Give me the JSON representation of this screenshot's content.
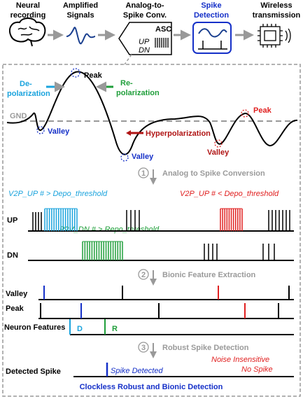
{
  "header": {
    "stages": [
      {
        "lines": [
          "Neural",
          "recording"
        ]
      },
      {
        "lines": [
          "Amplified",
          "Signals"
        ]
      },
      {
        "lines": [
          "Analog-to-",
          "Spike Conv."
        ],
        "box": "ASC",
        "up": "UP",
        "dn": "DN"
      },
      {
        "lines": [
          "Spike",
          "Detection"
        ]
      },
      {
        "lines": [
          "Wireless",
          "transmission"
        ]
      }
    ]
  },
  "waveform": {
    "depolarization": [
      "De-",
      "polarization"
    ],
    "peak": "Peak",
    "repolarization": [
      "Re-",
      "polarization"
    ],
    "gnd": "GND",
    "valley_1": "Valley",
    "hyperpolarization": "Hyperpolarization",
    "valley_2": "Valley",
    "valley_3": "Valley",
    "peak_2": "Peak"
  },
  "steps": [
    {
      "number": 1,
      "label": "Analog to Spike Conversion"
    },
    {
      "number": 2,
      "label": "Bionic Feature Extraction"
    },
    {
      "number": 3,
      "label": "Robust Spike Detection"
    }
  ],
  "conversion": {
    "up_condition": "V2P_UP # > Depo_threshold",
    "up_condition_noise": "V2P_UP # < Depo_threshold",
    "up": "UP",
    "dn_condition": "P2V_DN # > Repo_threshold",
    "dn": "DN"
  },
  "features": {
    "valley": "Valley",
    "peak": "Peak",
    "neuron_features": "Neuron Features",
    "d": "D",
    "r": "R"
  },
  "detection": {
    "noise": [
      "Noise Insensitive",
      "No Spike"
    ],
    "detected_spike": "Detected Spike",
    "spike_detected": "Spike Detected"
  },
  "footer": "Clockless Robust and Bionic Detection"
}
